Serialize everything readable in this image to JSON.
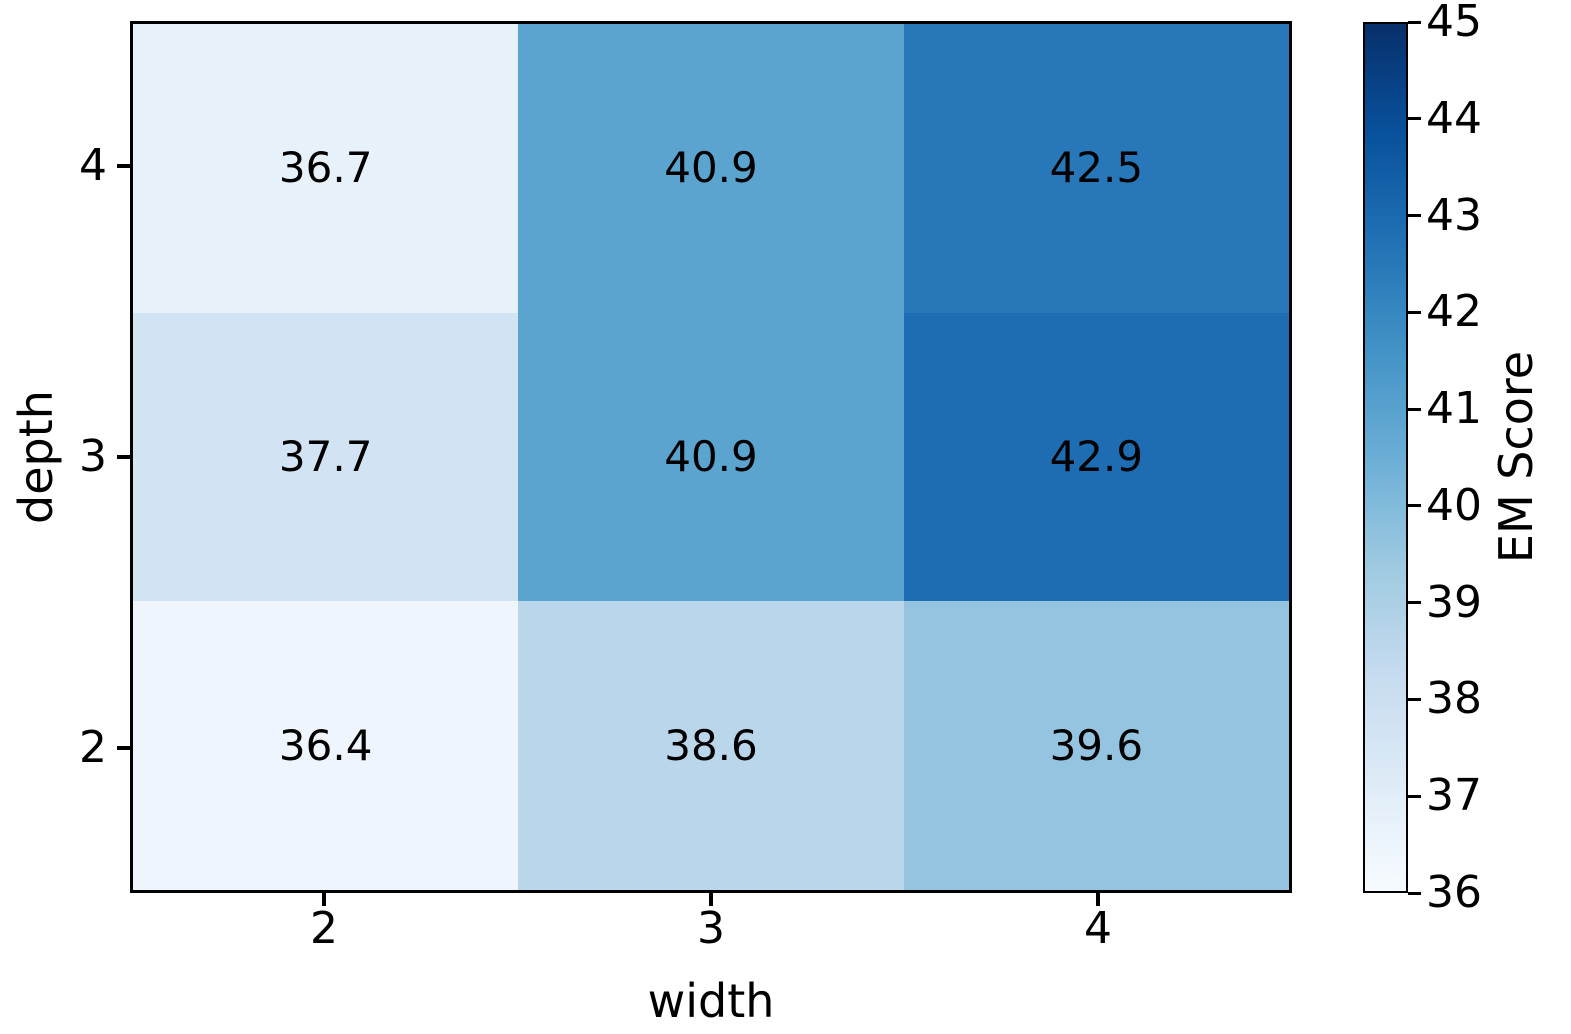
{
  "chart_data": {
    "type": "heatmap",
    "title": "",
    "xlabel": "width",
    "ylabel": "depth",
    "x_ticks": [
      "2",
      "3",
      "4"
    ],
    "y_ticks": [
      "4",
      "3",
      "2"
    ],
    "series": [
      {
        "name": "depth=4",
        "values": [
          36.7,
          40.9,
          42.5
        ]
      },
      {
        "name": "depth=3",
        "values": [
          37.7,
          40.9,
          42.9
        ]
      },
      {
        "name": "depth=2",
        "values": [
          36.4,
          38.6,
          39.6
        ]
      }
    ],
    "cells": [
      {
        "value": "36.7",
        "color": "#e7f1fa"
      },
      {
        "value": "40.9",
        "color": "#5ca4d0"
      },
      {
        "value": "42.5",
        "color": "#2878b9"
      },
      {
        "value": "37.7",
        "color": "#d2e3f3"
      },
      {
        "value": "40.9",
        "color": "#5ca4d0"
      },
      {
        "value": "42.9",
        "color": "#1e6db2"
      },
      {
        "value": "36.4",
        "color": "#eef5fc"
      },
      {
        "value": "38.6",
        "color": "#bad6eb"
      },
      {
        "value": "39.6",
        "color": "#94c4df"
      }
    ],
    "colorbar": {
      "label": "EM Score",
      "colormap": "Blues",
      "vmin": 36,
      "vmax": 45,
      "ticks": [
        "45",
        "44",
        "43",
        "42",
        "41",
        "40",
        "39",
        "38",
        "37",
        "36"
      ]
    },
    "grid": "off",
    "legend_position": "none"
  }
}
